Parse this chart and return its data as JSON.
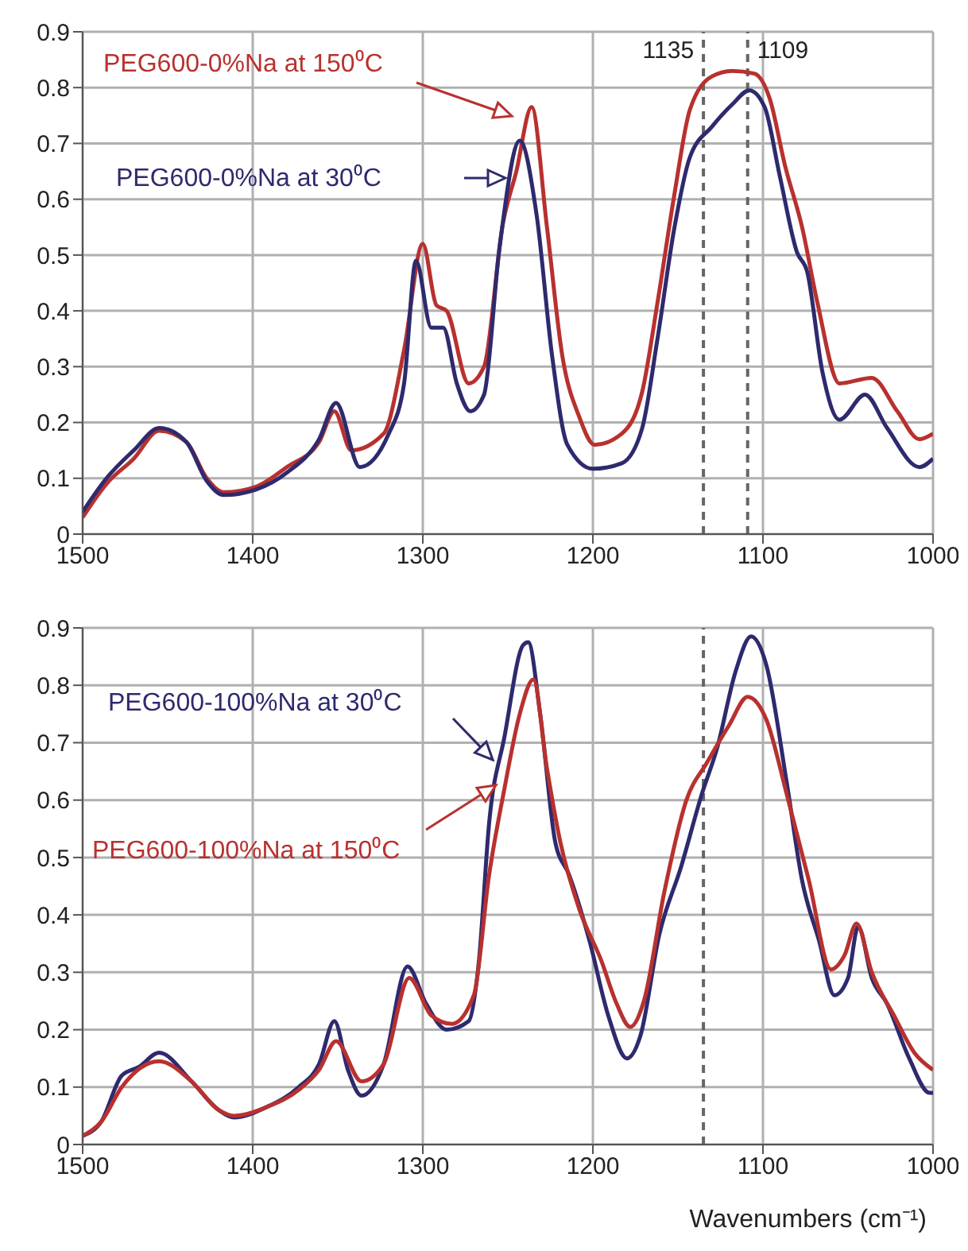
{
  "chart_data": [
    {
      "type": "line",
      "xlim": [
        1500,
        1000
      ],
      "xticks": [
        1500,
        1400,
        1300,
        1200,
        1100,
        1000
      ],
      "ylim": [
        0,
        0.9
      ],
      "yticks": [
        0,
        0.1,
        0.2,
        0.3,
        0.4,
        0.5,
        0.6,
        0.7,
        0.8,
        0.9
      ],
      "grid": true,
      "legend": false,
      "line_style": "solid",
      "ref_lines": [
        {
          "axis": "x",
          "value": 1135,
          "label": "1135",
          "color": "#666666",
          "line_style": "dashed"
        },
        {
          "axis": "x",
          "value": 1109,
          "label": "1109",
          "color": "#666666",
          "line_style": "dashed"
        }
      ],
      "series": [
        {
          "name": "PEG600-0%Na at 150⁰C",
          "color": "#b8312f",
          "x": [
            1500,
            1486,
            1470,
            1455,
            1439,
            1427,
            1417,
            1398,
            1380,
            1361,
            1352,
            1342,
            1323,
            1311,
            1300,
            1292,
            1286,
            1273,
            1264,
            1253,
            1245,
            1236,
            1227,
            1218,
            1208,
            1199,
            1183,
            1171,
            1162,
            1152,
            1143,
            1130,
            1118,
            1105,
            1096,
            1087,
            1077,
            1068,
            1055,
            1036,
            1021,
            1008,
            1000
          ],
          "values": [
            0.03,
            0.09,
            0.135,
            0.185,
            0.165,
            0.1,
            0.075,
            0.085,
            0.12,
            0.165,
            0.22,
            0.15,
            0.18,
            0.33,
            0.52,
            0.41,
            0.4,
            0.27,
            0.3,
            0.555,
            0.65,
            0.765,
            0.55,
            0.32,
            0.21,
            0.16,
            0.18,
            0.255,
            0.415,
            0.61,
            0.76,
            0.82,
            0.83,
            0.825,
            0.78,
            0.66,
            0.55,
            0.415,
            0.27,
            0.28,
            0.22,
            0.17,
            0.18
          ]
        },
        {
          "name": "PEG600-0%Na at 30⁰C",
          "color": "#2e2a6e",
          "x": [
            1500,
            1486,
            1470,
            1455,
            1439,
            1427,
            1417,
            1398,
            1380,
            1361,
            1351,
            1337,
            1320,
            1311,
            1304,
            1295,
            1288,
            1280,
            1272,
            1264,
            1255,
            1243,
            1233,
            1224,
            1215,
            1200,
            1183,
            1171,
            1162,
            1152,
            1143,
            1130,
            1118,
            1108,
            1099,
            1090,
            1080,
            1074,
            1065,
            1055,
            1040,
            1027,
            1008,
            1000
          ],
          "values": [
            0.04,
            0.1,
            0.15,
            0.19,
            0.165,
            0.095,
            0.07,
            0.08,
            0.11,
            0.17,
            0.235,
            0.12,
            0.18,
            0.27,
            0.49,
            0.37,
            0.37,
            0.27,
            0.22,
            0.25,
            0.51,
            0.705,
            0.57,
            0.32,
            0.16,
            0.117,
            0.127,
            0.19,
            0.35,
            0.55,
            0.675,
            0.73,
            0.77,
            0.795,
            0.765,
            0.64,
            0.505,
            0.47,
            0.29,
            0.205,
            0.25,
            0.19,
            0.12,
            0.135
          ]
        }
      ]
    },
    {
      "type": "line",
      "xlabel": "Wavenumbers (cm⁻¹)",
      "xlim": [
        1500,
        1000
      ],
      "xticks": [
        1500,
        1400,
        1300,
        1200,
        1100,
        1000
      ],
      "ylim": [
        0,
        0.9
      ],
      "yticks": [
        0,
        0.1,
        0.2,
        0.3,
        0.4,
        0.5,
        0.6,
        0.7,
        0.8,
        0.9
      ],
      "grid": true,
      "legend": false,
      "line_style": "solid",
      "ref_lines": [
        {
          "axis": "x",
          "value": 1135,
          "color": "#666666",
          "line_style": "dashed"
        }
      ],
      "series": [
        {
          "name": "PEG600-100%Na at 30⁰C",
          "color": "#2e2a6e",
          "x": [
            1500,
            1489,
            1477,
            1467,
            1455,
            1436,
            1420,
            1411,
            1392,
            1373,
            1361,
            1352,
            1344,
            1336,
            1323,
            1309,
            1298,
            1286,
            1273,
            1267,
            1261,
            1252,
            1241,
            1238,
            1231,
            1222,
            1214,
            1202,
            1191,
            1180,
            1172,
            1161,
            1148,
            1136,
            1127,
            1116,
            1107,
            1098,
            1086,
            1077,
            1067,
            1058,
            1050,
            1044,
            1036,
            1027,
            1014,
            1002,
            1000
          ],
          "values": [
            0.015,
            0.04,
            0.12,
            0.135,
            0.16,
            0.11,
            0.06,
            0.047,
            0.065,
            0.1,
            0.14,
            0.215,
            0.13,
            0.085,
            0.14,
            0.31,
            0.245,
            0.2,
            0.215,
            0.32,
            0.56,
            0.71,
            0.87,
            0.875,
            0.75,
            0.525,
            0.47,
            0.355,
            0.225,
            0.15,
            0.19,
            0.365,
            0.485,
            0.61,
            0.69,
            0.825,
            0.885,
            0.835,
            0.63,
            0.46,
            0.355,
            0.26,
            0.29,
            0.38,
            0.29,
            0.245,
            0.15,
            0.09,
            0.09
          ]
        },
        {
          "name": "PEG600-100%Na at 150⁰C",
          "color": "#b8312f",
          "x": [
            1500,
            1489,
            1477,
            1455,
            1436,
            1420,
            1411,
            1392,
            1373,
            1361,
            1351,
            1336,
            1323,
            1308,
            1295,
            1283,
            1270,
            1261,
            1252,
            1243,
            1235,
            1227,
            1219,
            1208,
            1195,
            1186,
            1178,
            1170,
            1158,
            1145,
            1133,
            1120,
            1109,
            1098,
            1086,
            1073,
            1060,
            1052,
            1045,
            1036,
            1023,
            1011,
            1000
          ],
          "values": [
            0.015,
            0.04,
            0.1,
            0.145,
            0.11,
            0.06,
            0.05,
            0.065,
            0.095,
            0.13,
            0.18,
            0.11,
            0.14,
            0.29,
            0.225,
            0.21,
            0.26,
            0.47,
            0.62,
            0.75,
            0.81,
            0.655,
            0.525,
            0.41,
            0.32,
            0.245,
            0.205,
            0.25,
            0.44,
            0.6,
            0.665,
            0.73,
            0.78,
            0.74,
            0.61,
            0.46,
            0.305,
            0.33,
            0.385,
            0.3,
            0.225,
            0.16,
            0.13
          ]
        }
      ]
    }
  ]
}
